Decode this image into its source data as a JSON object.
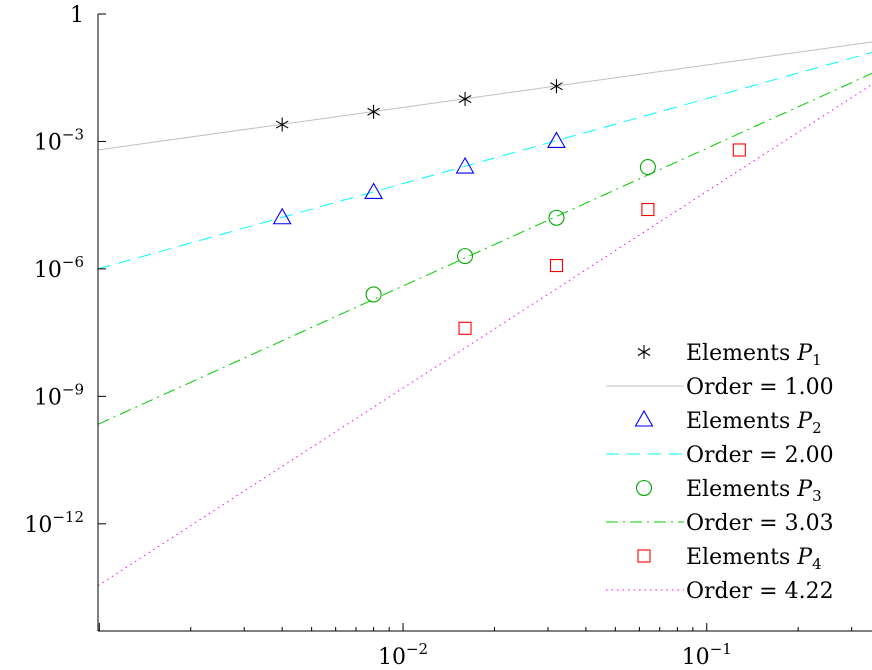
{
  "chart_data": {
    "type": "scatter",
    "title": "",
    "xlabel": "",
    "ylabel": "",
    "x_scale": "log",
    "y_scale": "log",
    "xlim": [
      0.00099,
      0.35
    ],
    "ylim": [
      3e-15,
      1
    ],
    "x_ticks": [
      {
        "value": 0.01,
        "base": "10",
        "exp": "−2"
      },
      {
        "value": 0.1,
        "base": "10",
        "exp": "−1"
      }
    ],
    "y_ticks": [
      {
        "value": 1,
        "base": "1",
        "exp": ""
      },
      {
        "value": 0.001,
        "base": "10",
        "exp": "−3"
      },
      {
        "value": 1e-06,
        "base": "10",
        "exp": "−6"
      },
      {
        "value": 1e-09,
        "base": "10",
        "exp": "−9"
      },
      {
        "value": 1e-12,
        "base": "10",
        "exp": "−12"
      }
    ],
    "grid": false,
    "legend_position": "bottom-right",
    "series": [
      {
        "kind": "points",
        "name": "Elements P1",
        "legend_text": "Elements",
        "legend_var": "P",
        "legend_sub": "1",
        "marker": "asterisk",
        "color": "#000000",
        "x": [
          0.004,
          0.008,
          0.016,
          0.032
        ],
        "y": [
          0.0025,
          0.005,
          0.01,
          0.02
        ]
      },
      {
        "kind": "line",
        "name": "Order = 1.00",
        "legend_text": "Order = 1.00",
        "style": "solid",
        "color": "#c0c0c0",
        "x": [
          0.00099,
          0.35
        ],
        "y": [
          0.00063,
          0.22
        ]
      },
      {
        "kind": "points",
        "name": "Elements P2",
        "legend_text": "Elements",
        "legend_var": "P",
        "legend_sub": "2",
        "marker": "triangle",
        "color": "#0000ff",
        "x": [
          0.004,
          0.008,
          0.016,
          0.032
        ],
        "y": [
          1.6e-05,
          6.3e-05,
          0.00025,
          0.001
        ]
      },
      {
        "kind": "line",
        "name": "Order = 2.00",
        "legend_text": "Order = 2.00",
        "style": "dashed",
        "color": "#00ffff",
        "x": [
          0.00099,
          0.35
        ],
        "y": [
          1e-06,
          0.125
        ]
      },
      {
        "kind": "points",
        "name": "Elements P3",
        "legend_text": "Elements",
        "legend_var": "P",
        "legend_sub": "3",
        "marker": "circle",
        "color": "#00aa00",
        "x": [
          0.008,
          0.016,
          0.032,
          0.064
        ],
        "y": [
          2.5e-07,
          2e-06,
          1.6e-05,
          0.00025
        ]
      },
      {
        "kind": "line",
        "name": "Order = 3.03",
        "legend_text": "Order = 3.03",
        "style": "dashdot",
        "color": "#00cc00",
        "x": [
          0.00099,
          0.35
        ],
        "y": [
          2.2e-10,
          0.04
        ]
      },
      {
        "kind": "points",
        "name": "Elements P4",
        "legend_text": "Elements",
        "legend_var": "P",
        "legend_sub": "4",
        "marker": "square",
        "color": "#ff0000",
        "x": [
          0.016,
          0.032,
          0.064,
          0.128
        ],
        "y": [
          4e-08,
          1.2e-06,
          2.5e-05,
          0.00063
        ]
      },
      {
        "kind": "line",
        "name": "Order = 4.22",
        "legend_text": "Order = 4.22",
        "style": "dotted",
        "color": "#ff00ff",
        "x": [
          0.00099,
          0.35
        ],
        "y": [
          3.5e-14,
          0.022
        ]
      }
    ]
  }
}
